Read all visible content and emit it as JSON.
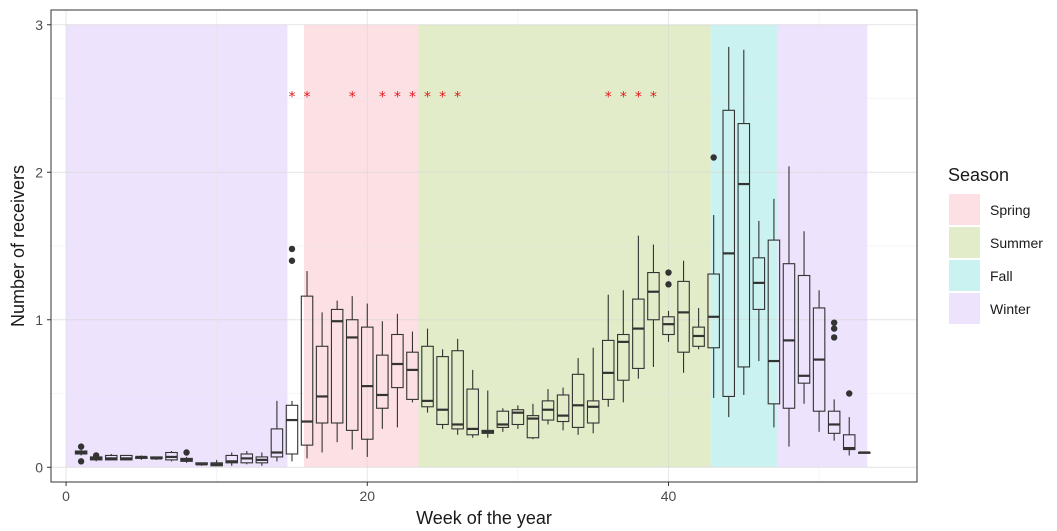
{
  "chart_data": {
    "type": "boxplot",
    "title": "",
    "xlabel": "Week of the year",
    "ylabel": "Number of receivers",
    "xlim": [
      -1,
      56.5
    ],
    "ylim": [
      -0.1,
      3.1
    ],
    "x_ticks": [
      0,
      20,
      40
    ],
    "y_ticks": [
      0,
      1,
      2,
      3
    ],
    "grid": true,
    "legend": {
      "title": "Season",
      "placement": "right",
      "items": [
        {
          "label": "Spring",
          "color": "#fde0e4"
        },
        {
          "label": "Summer",
          "color": "#e2ecc9"
        },
        {
          "label": "Fall",
          "color": "#c9f2f0"
        },
        {
          "label": "Winter",
          "color": "#ede3fc"
        }
      ]
    },
    "season_bands": [
      {
        "season": "Winter",
        "x": [
          0,
          14.7
        ],
        "color": "#ede3fc"
      },
      {
        "season": "Spring",
        "x": [
          15.8,
          23.4
        ],
        "color": "#fde0e4"
      },
      {
        "season": "Summer",
        "x": [
          23.4,
          42.8
        ],
        "color": "#e2ecc9"
      },
      {
        "season": "Fall",
        "x": [
          42.8,
          47.2
        ],
        "color": "#c9f2f0"
      },
      {
        "season": "Winter",
        "x": [
          47.2,
          53.2
        ],
        "color": "#ede3fc"
      }
    ],
    "significance_marker": "*",
    "significance_y": 2.52,
    "significant_weeks": [
      15,
      16,
      19,
      21,
      22,
      23,
      24,
      25,
      26,
      36,
      37,
      38,
      39
    ],
    "boxes": [
      {
        "week": 1,
        "lw": 0.08,
        "q1": 0.09,
        "med": 0.1,
        "q3": 0.11,
        "uw": 0.12,
        "out": [
          0.04,
          0.14
        ]
      },
      {
        "week": 2,
        "lw": 0.04,
        "q1": 0.05,
        "med": 0.06,
        "q3": 0.07,
        "uw": 0.08,
        "out": [
          0.08
        ]
      },
      {
        "week": 3,
        "lw": 0.05,
        "q1": 0.05,
        "med": 0.06,
        "q3": 0.08,
        "uw": 0.09,
        "out": []
      },
      {
        "week": 4,
        "lw": 0.05,
        "q1": 0.05,
        "med": 0.06,
        "q3": 0.08,
        "uw": 0.08,
        "out": []
      },
      {
        "week": 5,
        "lw": 0.05,
        "q1": 0.06,
        "med": 0.07,
        "q3": 0.07,
        "uw": 0.08,
        "out": []
      },
      {
        "week": 6,
        "lw": 0.05,
        "q1": 0.06,
        "med": 0.06,
        "q3": 0.07,
        "uw": 0.07,
        "out": []
      },
      {
        "week": 7,
        "lw": 0.04,
        "q1": 0.05,
        "med": 0.07,
        "q3": 0.1,
        "uw": 0.11,
        "out": []
      },
      {
        "week": 8,
        "lw": 0.03,
        "q1": 0.04,
        "med": 0.05,
        "q3": 0.06,
        "uw": 0.07,
        "out": [
          0.1
        ]
      },
      {
        "week": 9,
        "lw": 0.01,
        "q1": 0.02,
        "med": 0.02,
        "q3": 0.03,
        "uw": 0.03,
        "out": []
      },
      {
        "week": 10,
        "lw": 0.01,
        "q1": 0.01,
        "med": 0.02,
        "q3": 0.03,
        "uw": 0.05,
        "out": []
      },
      {
        "week": 11,
        "lw": 0.01,
        "q1": 0.03,
        "med": 0.04,
        "q3": 0.08,
        "uw": 0.1,
        "out": []
      },
      {
        "week": 12,
        "lw": 0.02,
        "q1": 0.03,
        "med": 0.06,
        "q3": 0.09,
        "uw": 0.11,
        "out": []
      },
      {
        "week": 13,
        "lw": 0.01,
        "q1": 0.03,
        "med": 0.05,
        "q3": 0.07,
        "uw": 0.1,
        "out": []
      },
      {
        "week": 14,
        "lw": 0.04,
        "q1": 0.07,
        "med": 0.1,
        "q3": 0.26,
        "uw": 0.45,
        "out": []
      },
      {
        "week": 15,
        "lw": 0.04,
        "q1": 0.09,
        "med": 0.32,
        "q3": 0.42,
        "uw": 0.45,
        "out": [
          1.4,
          1.48
        ]
      },
      {
        "week": 16,
        "lw": 0.06,
        "q1": 0.15,
        "med": 0.31,
        "q3": 1.16,
        "uw": 1.33,
        "out": []
      },
      {
        "week": 17,
        "lw": 0.1,
        "q1": 0.3,
        "med": 0.48,
        "q3": 0.82,
        "uw": 1.05,
        "out": []
      },
      {
        "week": 18,
        "lw": 0.17,
        "q1": 0.3,
        "med": 0.99,
        "q3": 1.07,
        "uw": 1.13,
        "out": []
      },
      {
        "week": 19,
        "lw": 0.12,
        "q1": 0.25,
        "med": 0.88,
        "q3": 1.0,
        "uw": 1.16,
        "out": []
      },
      {
        "week": 20,
        "lw": 0.07,
        "q1": 0.19,
        "med": 0.55,
        "q3": 0.95,
        "uw": 1.11,
        "out": []
      },
      {
        "week": 21,
        "lw": 0.26,
        "q1": 0.4,
        "med": 0.49,
        "q3": 0.76,
        "uw": 0.99,
        "out": []
      },
      {
        "week": 22,
        "lw": 0.27,
        "q1": 0.54,
        "med": 0.7,
        "q3": 0.9,
        "uw": 1.04,
        "out": []
      },
      {
        "week": 23,
        "lw": 0.44,
        "q1": 0.46,
        "med": 0.66,
        "q3": 0.78,
        "uw": 0.92,
        "out": []
      },
      {
        "week": 24,
        "lw": 0.37,
        "q1": 0.41,
        "med": 0.45,
        "q3": 0.82,
        "uw": 0.94,
        "out": []
      },
      {
        "week": 25,
        "lw": 0.26,
        "q1": 0.29,
        "med": 0.39,
        "q3": 0.75,
        "uw": 0.8,
        "out": []
      },
      {
        "week": 26,
        "lw": 0.22,
        "q1": 0.26,
        "med": 0.29,
        "q3": 0.79,
        "uw": 0.87,
        "out": []
      },
      {
        "week": 27,
        "lw": 0.2,
        "q1": 0.22,
        "med": 0.26,
        "q3": 0.53,
        "uw": 0.66,
        "out": []
      },
      {
        "week": 28,
        "lw": 0.2,
        "q1": 0.23,
        "med": 0.24,
        "q3": 0.25,
        "uw": 0.52,
        "out": []
      },
      {
        "week": 29,
        "lw": 0.24,
        "q1": 0.27,
        "med": 0.29,
        "q3": 0.38,
        "uw": 0.4,
        "out": []
      },
      {
        "week": 30,
        "lw": 0.26,
        "q1": 0.29,
        "med": 0.37,
        "q3": 0.39,
        "uw": 0.42,
        "out": []
      },
      {
        "week": 31,
        "lw": 0.19,
        "q1": 0.2,
        "med": 0.33,
        "q3": 0.35,
        "uw": 0.43,
        "out": []
      },
      {
        "week": 32,
        "lw": 0.29,
        "q1": 0.32,
        "med": 0.39,
        "q3": 0.45,
        "uw": 0.53,
        "out": []
      },
      {
        "week": 33,
        "lw": 0.25,
        "q1": 0.31,
        "med": 0.35,
        "q3": 0.49,
        "uw": 0.54,
        "out": []
      },
      {
        "week": 34,
        "lw": 0.22,
        "q1": 0.27,
        "med": 0.42,
        "q3": 0.63,
        "uw": 0.74,
        "out": []
      },
      {
        "week": 35,
        "lw": 0.23,
        "q1": 0.3,
        "med": 0.41,
        "q3": 0.45,
        "uw": 0.81,
        "out": []
      },
      {
        "week": 36,
        "lw": 0.41,
        "q1": 0.46,
        "med": 0.64,
        "q3": 0.86,
        "uw": 1.17,
        "out": []
      },
      {
        "week": 37,
        "lw": 0.44,
        "q1": 0.59,
        "med": 0.85,
        "q3": 0.9,
        "uw": 1.2,
        "out": []
      },
      {
        "week": 38,
        "lw": 0.6,
        "q1": 0.67,
        "med": 0.94,
        "q3": 1.14,
        "uw": 1.57,
        "out": []
      },
      {
        "week": 39,
        "lw": 0.68,
        "q1": 1.0,
        "med": 1.19,
        "q3": 1.32,
        "uw": 1.51,
        "out": []
      },
      {
        "week": 40,
        "lw": 0.85,
        "q1": 0.9,
        "med": 0.97,
        "q3": 1.02,
        "uw": 1.06,
        "out": [
          1.24,
          1.32
        ]
      },
      {
        "week": 41,
        "lw": 0.64,
        "q1": 0.78,
        "med": 1.05,
        "q3": 1.26,
        "uw": 1.4,
        "out": []
      },
      {
        "week": 42,
        "lw": 0.8,
        "q1": 0.82,
        "med": 0.89,
        "q3": 0.95,
        "uw": 1.08,
        "out": []
      },
      {
        "week": 43,
        "lw": 0.47,
        "q1": 0.81,
        "med": 1.02,
        "q3": 1.31,
        "uw": 1.71,
        "out": [
          2.1
        ]
      },
      {
        "week": 44,
        "lw": 0.34,
        "q1": 0.48,
        "med": 1.45,
        "q3": 2.42,
        "uw": 2.85,
        "out": []
      },
      {
        "week": 45,
        "lw": 0.49,
        "q1": 0.68,
        "med": 1.92,
        "q3": 2.33,
        "uw": 2.83,
        "out": []
      },
      {
        "week": 46,
        "lw": 0.72,
        "q1": 1.07,
        "med": 1.25,
        "q3": 1.42,
        "uw": 1.67,
        "out": []
      },
      {
        "week": 47,
        "lw": 0.27,
        "q1": 0.43,
        "med": 0.72,
        "q3": 1.54,
        "uw": 1.82,
        "out": []
      },
      {
        "week": 48,
        "lw": 0.14,
        "q1": 0.4,
        "med": 0.86,
        "q3": 1.38,
        "uw": 2.04,
        "out": []
      },
      {
        "week": 49,
        "lw": 0.43,
        "q1": 0.57,
        "med": 0.62,
        "q3": 1.3,
        "uw": 1.6,
        "out": []
      },
      {
        "week": 50,
        "lw": 0.24,
        "q1": 0.38,
        "med": 0.73,
        "q3": 1.08,
        "uw": 1.2,
        "out": []
      },
      {
        "week": 51,
        "lw": 0.18,
        "q1": 0.23,
        "med": 0.29,
        "q3": 0.38,
        "uw": 0.46,
        "out": [
          0.88,
          0.94,
          0.98
        ]
      },
      {
        "week": 52,
        "lw": 0.08,
        "q1": 0.12,
        "med": 0.13,
        "q3": 0.22,
        "uw": 0.34,
        "out": [
          0.5
        ]
      },
      {
        "week": 53,
        "lw": 0.1,
        "q1": 0.1,
        "med": 0.1,
        "q3": 0.1,
        "uw": 0.1,
        "out": []
      }
    ]
  }
}
